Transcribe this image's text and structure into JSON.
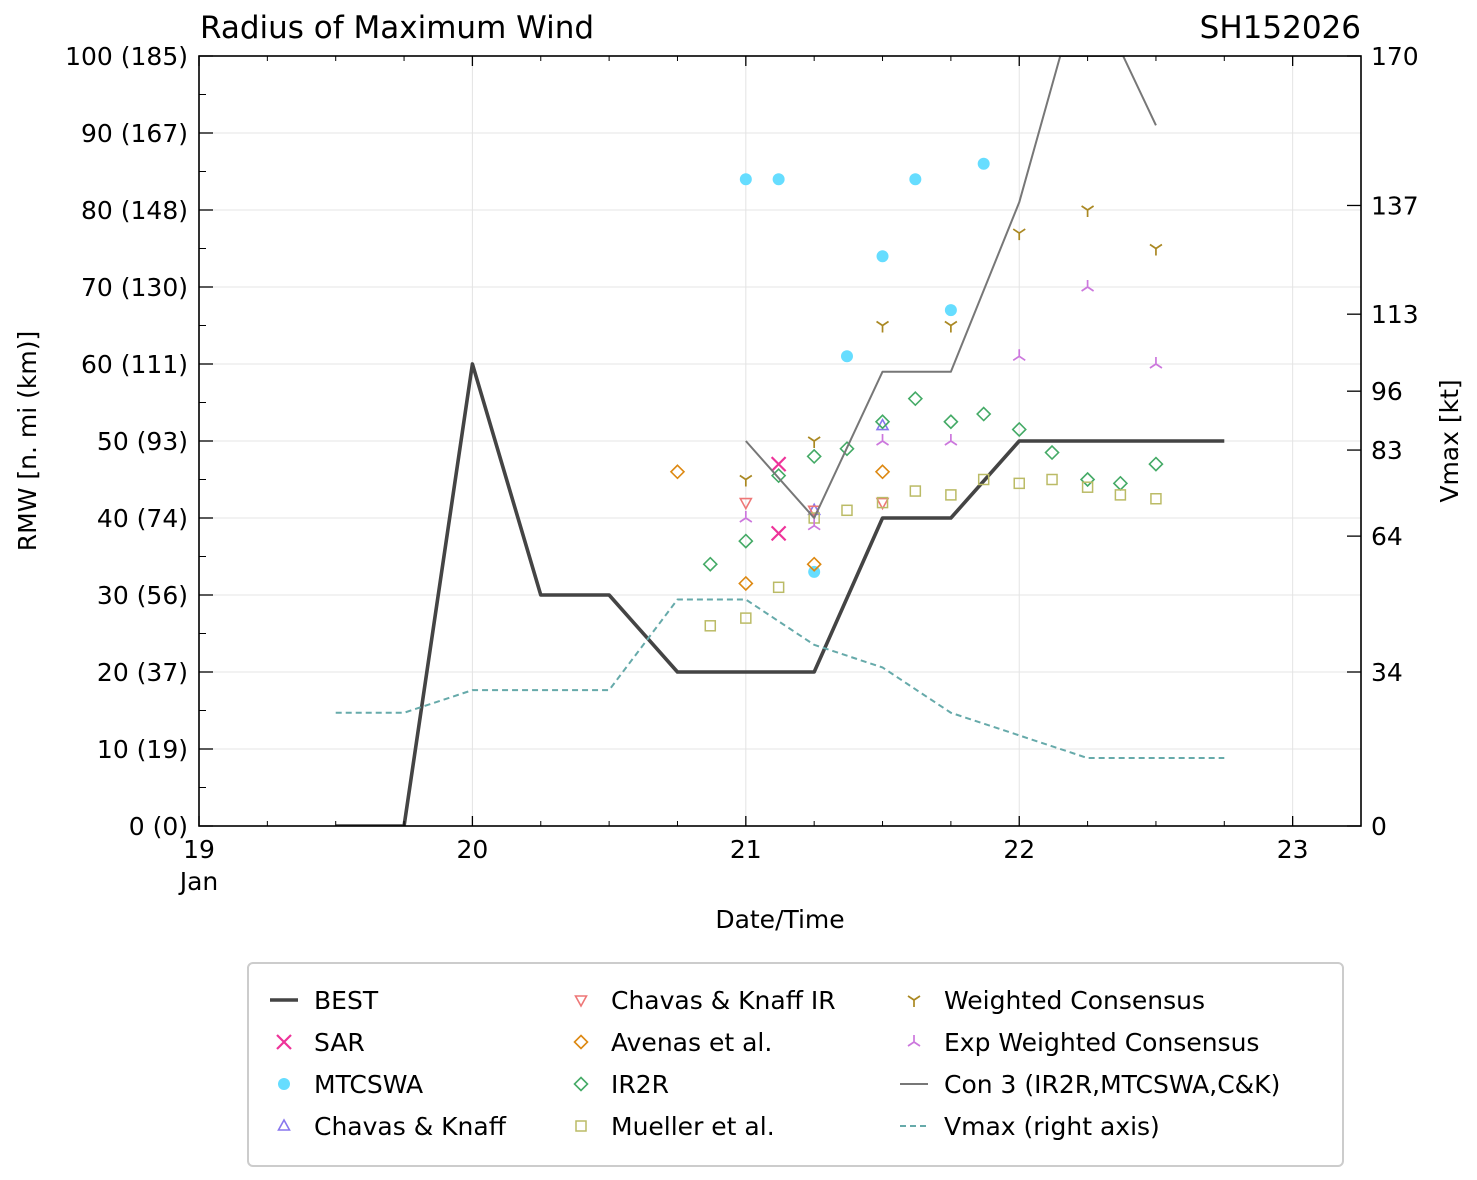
{
  "chart_data": {
    "type": "line",
    "title": "Radius of Maximum Wind",
    "storm_id": "SH152026",
    "xlabel": "Date/Time",
    "ylabel": "RMW [n. mi (km)]",
    "y2label": "Vmax [kt]",
    "xlim": [
      19,
      23.25
    ],
    "ylim": [
      0,
      100
    ],
    "y2lim": [
      0,
      170
    ],
    "x_ticks": [
      19,
      20,
      21,
      22,
      23
    ],
    "x_tick_labels": [
      "19",
      "20",
      "21",
      "22",
      "23"
    ],
    "x_month_label": "Jan",
    "y_ticks": [
      0,
      10,
      20,
      30,
      40,
      50,
      60,
      70,
      80,
      90,
      100
    ],
    "y_tick_labels": [
      "0 (0)",
      "10 (19)",
      "20 (37)",
      "30 (56)",
      "40 (74)",
      "50 (93)",
      "60 (111)",
      "70 (130)",
      "80 (148)",
      "90 (167)",
      "100 (185)"
    ],
    "y2_ticks": [
      0,
      34,
      64,
      83,
      96,
      113,
      137,
      170
    ],
    "y2_tick_labels": [
      "0",
      "34",
      "64",
      "83",
      "96",
      "113",
      "137",
      "170"
    ],
    "grid": true,
    "legend_position": "below",
    "series": [
      {
        "name": "BEST",
        "kind": "line",
        "color": "#444444",
        "points": [
          [
            19.5,
            0
          ],
          [
            19.75,
            0
          ],
          [
            20.0,
            60
          ],
          [
            20.25,
            30
          ],
          [
            20.5,
            30
          ],
          [
            20.75,
            20
          ],
          [
            21.0,
            20
          ],
          [
            21.25,
            20
          ],
          [
            21.5,
            40
          ],
          [
            21.75,
            40
          ],
          [
            22.0,
            50
          ],
          [
            22.25,
            50
          ],
          [
            22.5,
            50
          ],
          [
            22.75,
            50
          ]
        ]
      },
      {
        "name": "SAR",
        "kind": "marker",
        "marker": "x",
        "color": "#ee3399",
        "points": [
          [
            21.12,
            47
          ],
          [
            21.12,
            38
          ]
        ]
      },
      {
        "name": "MTCSWA",
        "kind": "marker",
        "marker": "circle",
        "color": "#66ddff",
        "points": [
          [
            21.0,
            84
          ],
          [
            21.12,
            84
          ],
          [
            21.25,
            33
          ],
          [
            21.37,
            61
          ],
          [
            21.5,
            74
          ],
          [
            21.62,
            84
          ],
          [
            21.75,
            67
          ],
          [
            21.87,
            86
          ]
        ]
      },
      {
        "name": "Chavas & Knaff",
        "kind": "marker",
        "marker": "triangle-up",
        "color": "#8877ee",
        "points": [
          [
            21.25,
            41
          ],
          [
            21.5,
            52
          ]
        ]
      },
      {
        "name": "Chavas & Knaff IR",
        "kind": "marker",
        "marker": "triangle-down",
        "color": "#ee7777",
        "points": [
          [
            21.0,
            42
          ],
          [
            21.25,
            41
          ],
          [
            21.5,
            42
          ]
        ]
      },
      {
        "name": "Avenas et al.",
        "kind": "marker",
        "marker": "diamond",
        "color": "#dd8811",
        "points": [
          [
            20.75,
            46
          ],
          [
            21.0,
            31.5
          ],
          [
            21.25,
            34
          ],
          [
            21.5,
            46
          ]
        ]
      },
      {
        "name": "IR2R",
        "kind": "marker",
        "marker": "diamond",
        "color": "#44aa66",
        "points": [
          [
            20.87,
            34
          ],
          [
            21.0,
            37
          ],
          [
            21.12,
            45.5
          ],
          [
            21.25,
            48
          ],
          [
            21.37,
            49
          ],
          [
            21.5,
            52.5
          ],
          [
            21.62,
            55.5
          ],
          [
            21.75,
            52.5
          ],
          [
            21.87,
            53.5
          ],
          [
            22.0,
            51.5
          ],
          [
            22.12,
            48.5
          ],
          [
            22.25,
            45
          ],
          [
            22.37,
            44.5
          ],
          [
            22.5,
            47
          ]
        ]
      },
      {
        "name": "Mueller et al.",
        "kind": "marker",
        "marker": "square",
        "color": "#bbbb66",
        "points": [
          [
            20.87,
            26
          ],
          [
            21.0,
            27
          ],
          [
            21.12,
            31
          ],
          [
            21.25,
            40
          ],
          [
            21.37,
            41
          ],
          [
            21.5,
            42
          ],
          [
            21.62,
            43.5
          ],
          [
            21.75,
            43
          ],
          [
            21.87,
            45
          ],
          [
            22.0,
            44.5
          ],
          [
            22.12,
            45
          ],
          [
            22.25,
            44
          ],
          [
            22.37,
            43
          ],
          [
            22.5,
            42.5
          ]
        ]
      },
      {
        "name": "Weighted Consensus",
        "kind": "marker",
        "marker": "tri-down",
        "color": "#aa8822",
        "points": [
          [
            21.0,
            45
          ],
          [
            21.25,
            50
          ],
          [
            21.5,
            65
          ],
          [
            21.75,
            65
          ],
          [
            22.0,
            77
          ],
          [
            22.25,
            80
          ],
          [
            22.5,
            75
          ]
        ]
      },
      {
        "name": "Exp Weighted Consensus",
        "kind": "marker",
        "marker": "tri-up",
        "color": "#cc77dd",
        "points": [
          [
            21.0,
            40
          ],
          [
            21.25,
            39
          ],
          [
            21.5,
            50
          ],
          [
            21.75,
            50
          ],
          [
            22.0,
            61
          ],
          [
            22.25,
            70
          ],
          [
            22.5,
            60
          ]
        ]
      },
      {
        "name": "Con 3 (IR2R,MTCSWA,C&K)",
        "kind": "line",
        "color": "#777777",
        "points": [
          [
            21.0,
            50
          ],
          [
            21.25,
            40
          ],
          [
            21.5,
            59
          ],
          [
            21.75,
            59
          ],
          [
            22.0,
            81
          ],
          [
            22.15,
            100
          ],
          [
            22.38,
            100
          ],
          [
            22.5,
            91
          ]
        ]
      },
      {
        "name": "Vmax (right axis)",
        "kind": "dashed",
        "axis": "right",
        "color": "#66aaaa",
        "points": [
          [
            19.5,
            25
          ],
          [
            19.75,
            25
          ],
          [
            20.0,
            30
          ],
          [
            20.25,
            30
          ],
          [
            20.5,
            30
          ],
          [
            20.75,
            50
          ],
          [
            21.0,
            50
          ],
          [
            21.25,
            40
          ],
          [
            21.5,
            35
          ],
          [
            21.75,
            25
          ],
          [
            22.0,
            20
          ],
          [
            22.25,
            15
          ],
          [
            22.5,
            15
          ],
          [
            22.75,
            15
          ]
        ]
      }
    ]
  }
}
